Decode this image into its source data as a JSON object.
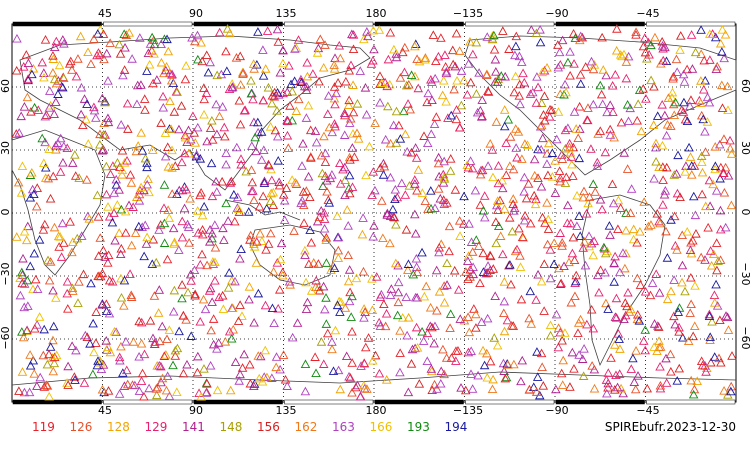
{
  "map": {
    "title_stamp": "SPIREbufr.2023-12-30",
    "lon_labels_top": [
      "45",
      "90",
      "135",
      "180",
      "−135",
      "−90",
      "−45"
    ],
    "lon_labels_bottom": [
      "45",
      "90",
      "135",
      "180",
      "−135",
      "−90",
      "−45"
    ],
    "lat_labels": [
      "60",
      "30",
      "0",
      "−30",
      "−60"
    ],
    "lon_range": [
      0,
      360
    ],
    "lat_range": [
      -90,
      90
    ],
    "grid": "dotted",
    "marker": "triangle-outline",
    "point_density": "very high",
    "legend": [
      {
        "label": "119",
        "color": "#e8202a"
      },
      {
        "label": "126",
        "color": "#e8502a"
      },
      {
        "label": "128",
        "color": "#f2a400"
      },
      {
        "label": "129",
        "color": "#e8206e"
      },
      {
        "label": "141",
        "color": "#b02090"
      },
      {
        "label": "148",
        "color": "#a8a000"
      },
      {
        "label": "156",
        "color": "#d82020"
      },
      {
        "label": "162",
        "color": "#f07818"
      },
      {
        "label": "163",
        "color": "#b040c0"
      },
      {
        "label": "166",
        "color": "#f0c000"
      },
      {
        "label": "193",
        "color": "#108a10"
      },
      {
        "label": "194",
        "color": "#1818a0"
      }
    ]
  }
}
